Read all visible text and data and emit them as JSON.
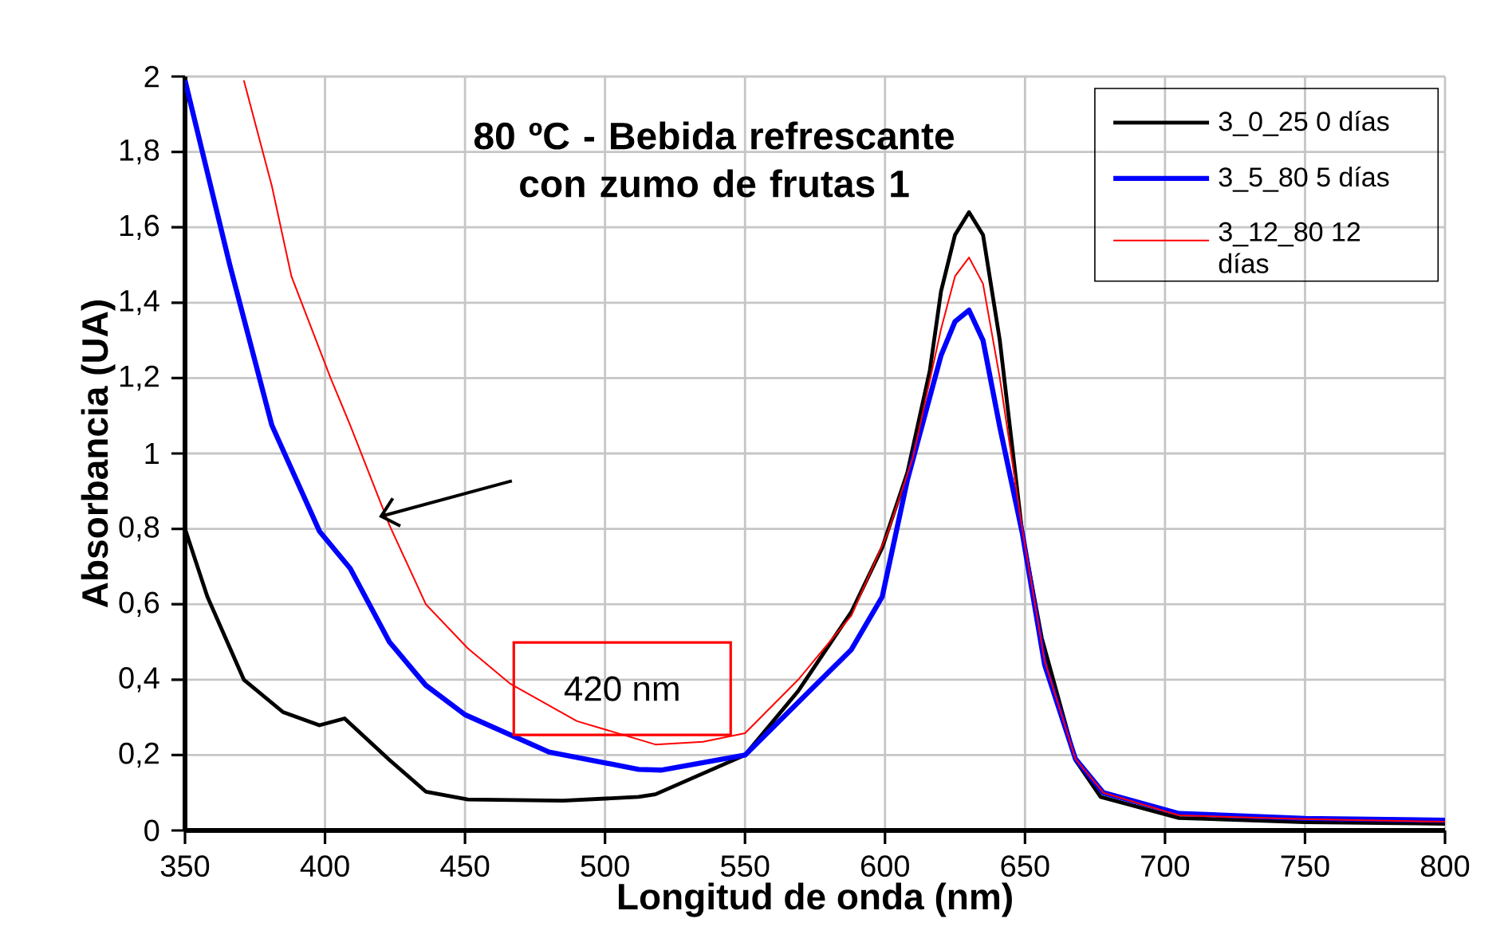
{
  "chart_data": {
    "type": "line",
    "title": "80 ºC - Bebida refrescante con zumo de frutas 1",
    "xlabel": "Longitud de onda (nm)",
    "ylabel": "Absorbancia (UA)",
    "xlim": [
      350,
      800
    ],
    "ylim": [
      0,
      2
    ],
    "xticks": [
      350,
      400,
      450,
      500,
      550,
      600,
      650,
      700,
      750,
      800
    ],
    "yticks": [
      0,
      {
        "value": 0.2,
        "label": "0,2"
      },
      {
        "value": 0.4,
        "label": "0,4"
      },
      {
        "value": 0.6,
        "label": "0,6"
      },
      {
        "value": 0.8,
        "label": "0,8"
      },
      1,
      {
        "value": 1.2,
        "label": "1,2"
      },
      {
        "value": 1.4,
        "label": "1,4"
      },
      {
        "value": 1.6,
        "label": "1,6"
      },
      {
        "value": 1.8,
        "label": "1,8"
      },
      2
    ],
    "grid": true,
    "legend": "top right",
    "annotations": [
      "420 nm"
    ],
    "series": [
      {
        "name": "3_0_25 0 días",
        "color": "#000000",
        "x": [
          350,
          358,
          371,
          385,
          398,
          407,
          423,
          436,
          451,
          485,
          512,
          518,
          550,
          569,
          588,
          599,
          608,
          616,
          620,
          625,
          630,
          635,
          641,
          649,
          656,
          668,
          677,
          705,
          750,
          800
        ],
        "values": [
          0.8,
          0.62,
          0.4,
          0.314,
          0.279,
          0.297,
          0.187,
          0.103,
          0.082,
          0.079,
          0.089,
          0.096,
          0.2,
          0.37,
          0.58,
          0.75,
          0.95,
          1.22,
          1.43,
          1.58,
          1.64,
          1.58,
          1.3,
          0.79,
          0.51,
          0.187,
          0.089,
          0.033,
          0.022,
          0.018
        ]
      },
      {
        "name": "3_5_80 5 días",
        "color": "#0000ff",
        "x": [
          350,
          366,
          381,
          398,
          409,
          423,
          436,
          450,
          480,
          512,
          520,
          550,
          569,
          588,
          599,
          608,
          620,
          625,
          630,
          635,
          641,
          649,
          657,
          668,
          678,
          705,
          750,
          800
        ],
        "values": [
          1.99,
          1.5,
          1.075,
          0.794,
          0.695,
          0.5,
          0.385,
          0.307,
          0.208,
          0.162,
          0.16,
          0.2,
          0.34,
          0.48,
          0.62,
          0.93,
          1.26,
          1.35,
          1.38,
          1.3,
          1.07,
          0.79,
          0.44,
          0.19,
          0.1,
          0.045,
          0.032,
          0.027
        ]
      },
      {
        "name": "3_12_80 12 días",
        "color": "#ff0000",
        "x": [
          371,
          381,
          388,
          402,
          409,
          423,
          436,
          451,
          466,
          490,
          518,
          535,
          550,
          569,
          588,
          601,
          610,
          620,
          625,
          630,
          635,
          641,
          649,
          657,
          668,
          678,
          705,
          750,
          800
        ],
        "values": [
          1.99,
          1.71,
          1.47,
          1.2,
          1.075,
          0.81,
          0.6,
          0.483,
          0.39,
          0.29,
          0.228,
          0.235,
          0.258,
          0.4,
          0.57,
          0.79,
          0.99,
          1.33,
          1.47,
          1.52,
          1.45,
          1.2,
          0.8,
          0.45,
          0.19,
          0.1,
          0.04,
          0.03,
          0.023
        ]
      }
    ]
  }
}
